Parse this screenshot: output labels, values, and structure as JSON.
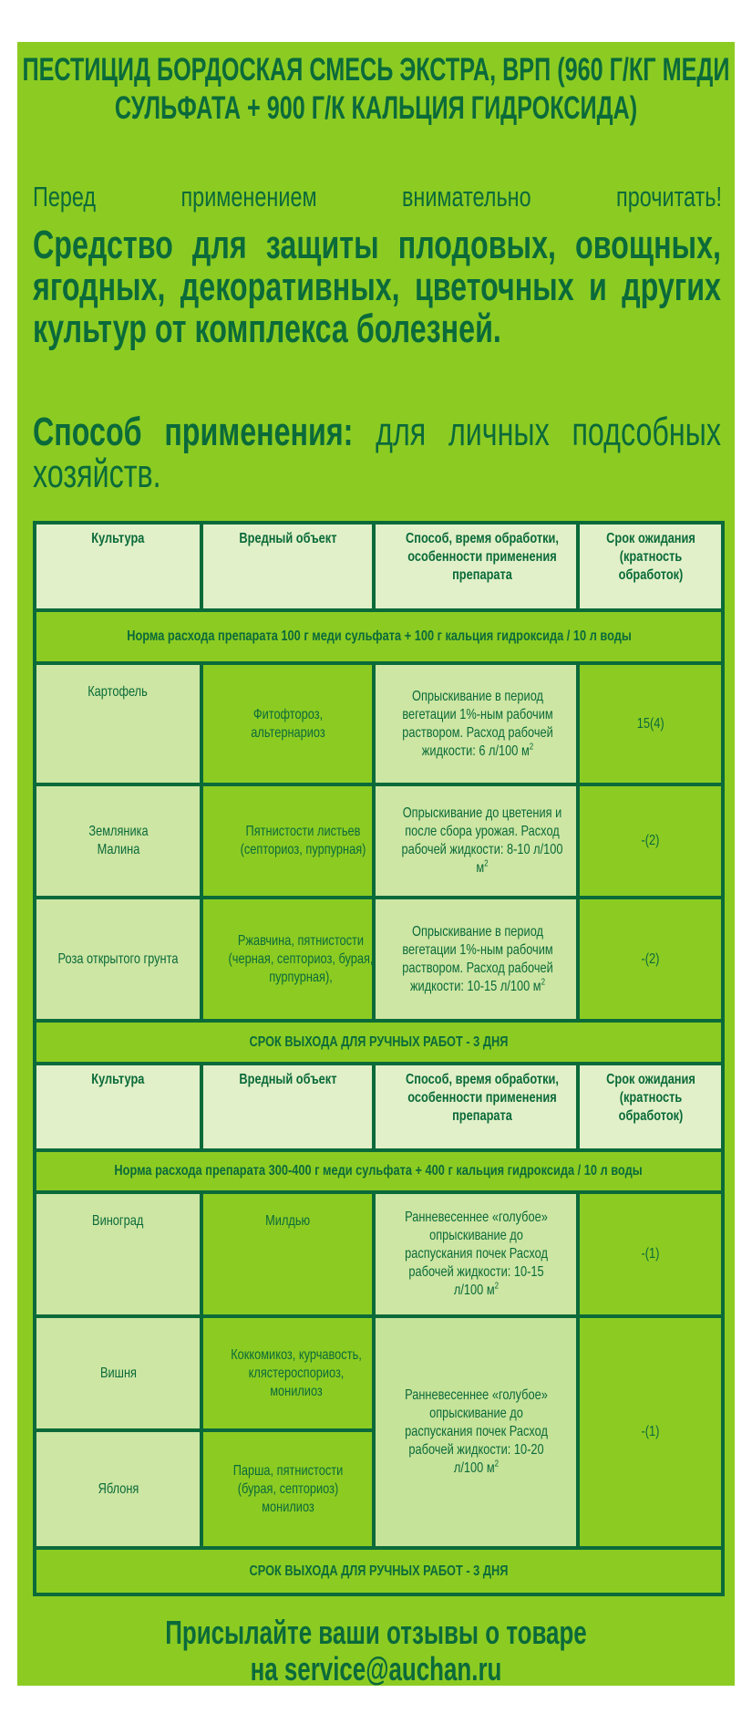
{
  "title": "ПЕСТИЦИД БОРДОСКАЯ СМЕСЬ ЭКСТРА, ВРП (960 Г/КГ МЕДИ СУЛЬФАТА + 900 Г/К КАЛЬЦИЯ ГИДРОКСИДА)",
  "warning": "Перед применением внимательно прочитать!",
  "description": "Средство для защиты плодовых, овощных, ягодных, декоративных, цветочных и других культур от комплекса болезней.",
  "method": {
    "label": "Способ применения:",
    "text": "для личных подсобных хозяйств."
  },
  "colors": {
    "background": "#8ccc22",
    "text": "#0b6a3a",
    "header_cell": "#e1f0c8",
    "light_cell": "#cde6a3"
  },
  "headers": [
    "Культура",
    "Вредный объект",
    "Способ, время обработки, особенности применения препарата",
    "Срок ожидания (кратность обработок)"
  ],
  "section1": {
    "norm": "Норма расхода препарата 100 г меди сульфата  + 100 г кальция гидроксида / 10 л воды",
    "rows": [
      {
        "crop": "Картофель",
        "pest": "Фитофтороз, альтернариоз",
        "method": "Опрыскивание в период вегетации 1%-ным рабочим раствором. Расход рабочей жидкости: 6 л/100 м",
        "sup": "2",
        "wait": "15(4)"
      },
      {
        "crop": "Земляника Малина",
        "pest": "Пятнистости листьев (септориоз, пурпурная)",
        "method": "Опрыскивание до цветения и после сбора урожая. Расход рабочей жидкости: 8-10 л/100 м",
        "sup": "2",
        "wait": "-(2)"
      },
      {
        "crop": "Роза открытого грунта",
        "pest": "Ржавчина, пятнистости (черная, септориоз, бурая, пурпурная),",
        "method": "Опрыскивание в период вегетации 1%-ным рабочим раствором. Расход рабочей жидкости: 10-15 л/100 м",
        "sup": "2",
        "wait": "-(2)"
      }
    ],
    "exit": "СРОК ВЫХОДА ДЛЯ РУЧНЫХ РАБОТ - 3 ДНЯ"
  },
  "section2": {
    "norm": "Норма расхода препарата 300-400 г меди сульфата  + 400 г кальция гидроксида / 10 л воды",
    "rows": [
      {
        "crop": "Виноград",
        "pest": "Милдью",
        "method": "Ранневесеннее «голубое» опрыскивание до распускания почек Расход рабочей жидкости: 10-15 л/100 м",
        "sup": "2",
        "wait": "-(1)"
      },
      {
        "crop": "Вишня",
        "pest": "Коккомикоз, курчавость, клястероспориоз, монилиоз"
      },
      {
        "crop": "Яблоня",
        "pest": "Парша, пятнистости (бурая, септориоз) монилиоз"
      }
    ],
    "shared_method": "Ранневесеннее «голубое» опрыскивание до распускания почек Расход рабочей жидкости: 10-20 л/100 м",
    "shared_sup": "2",
    "shared_wait": "-(1)",
    "exit": "СРОК ВЫХОДА ДЛЯ РУЧНЫХ РАБОТ - 3 ДНЯ"
  },
  "footer": {
    "line1": "Присылайте ваши отзывы о товаре",
    "line2": "на service@auchan.ru"
  }
}
